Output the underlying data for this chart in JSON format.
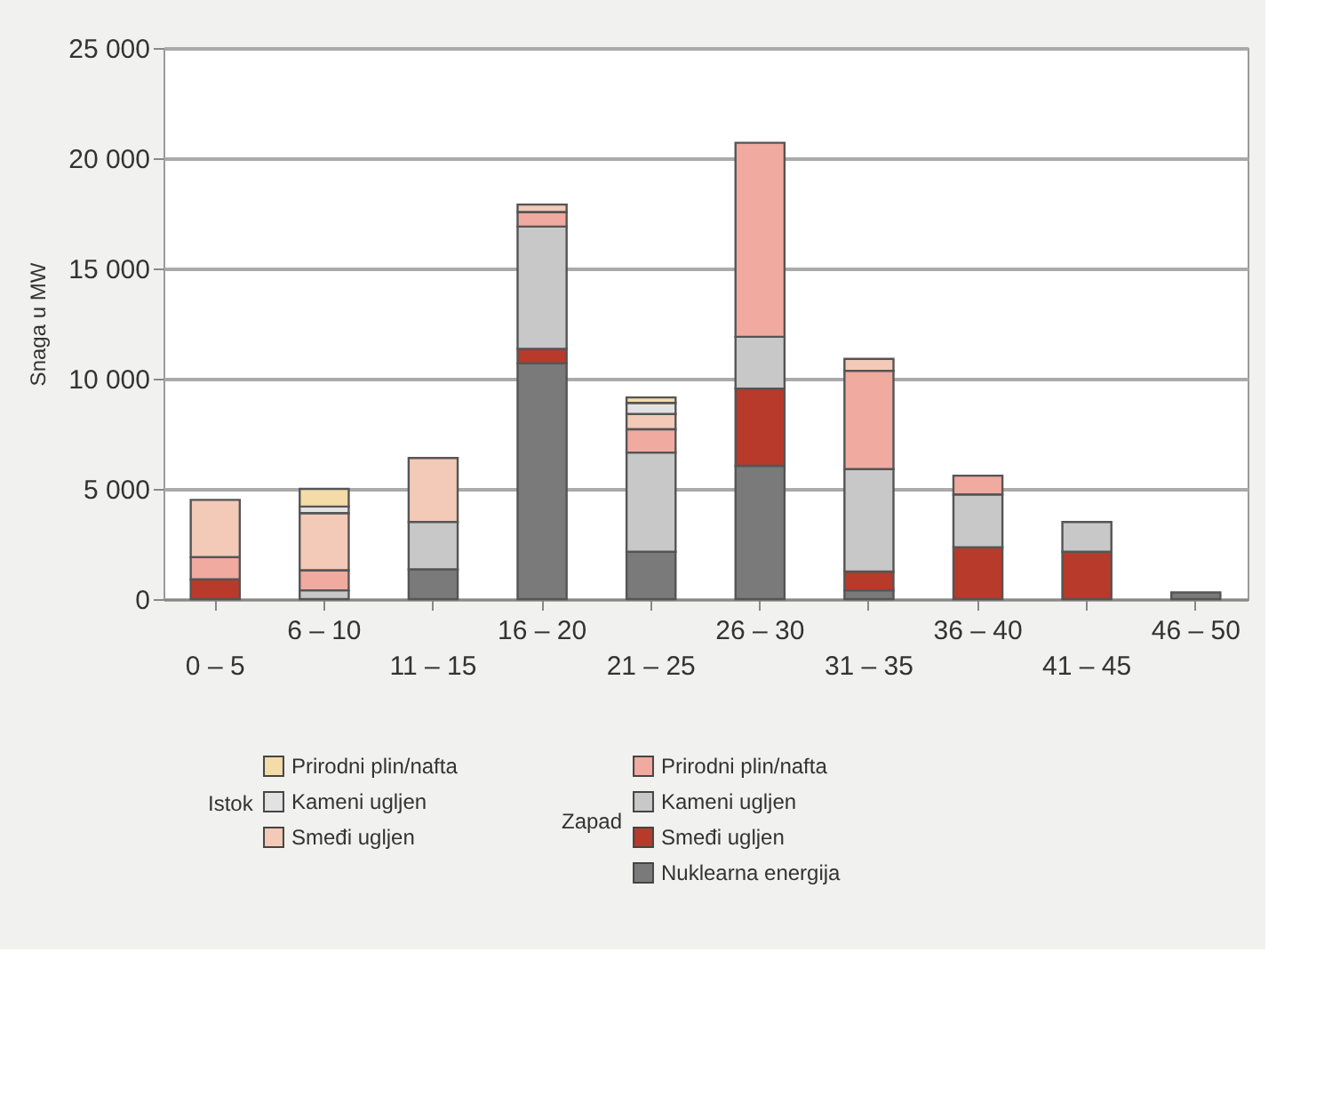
{
  "chart_data": {
    "type": "bar",
    "stacked": true,
    "ylabel": "Snaga u MW",
    "categories": [
      "0 – 5",
      "6 – 10",
      "11 – 15",
      "16 – 20",
      "21 – 25",
      "26 – 30",
      "31 – 35",
      "36 – 40",
      "41 – 45",
      "46 – 50"
    ],
    "ylim": [
      0,
      25000
    ],
    "yticks": [
      {
        "value": 0,
        "label": "0"
      },
      {
        "value": 5000,
        "label": "5 000"
      },
      {
        "value": 10000,
        "label": "10 000"
      },
      {
        "value": 15000,
        "label": "15 000"
      },
      {
        "value": 20000,
        "label": "20 000"
      },
      {
        "value": 25000,
        "label": "25 000"
      }
    ],
    "grid": "y",
    "legend": "bottom",
    "legend_title": [
      "Zapad",
      "Istok"
    ],
    "series": [
      {
        "name": "Nuklearna energija",
        "color": "#7a7a7a",
        "values": [
          null,
          null,
          1350,
          10700,
          2150,
          6050,
          400,
          null,
          null,
          300
        ]
      },
      {
        "name": "Smeđi ugljen",
        "color": "#b83a2a",
        "values": [
          900,
          null,
          null,
          650,
          null,
          3500,
          850,
          2350,
          2150,
          null
        ]
      },
      {
        "name": "Kameni ugljen",
        "color": "#c8c8c8",
        "values": [
          null,
          400,
          2150,
          5550,
          4500,
          2350,
          4650,
          2400,
          1350,
          null
        ]
      },
      {
        "name": "Prirodni plin/nafta",
        "color": "#f0aaa0",
        "values": [
          1000,
          900,
          null,
          650,
          1050,
          8800,
          4450,
          850,
          null,
          null
        ]
      },
      {
        "name": "Smeđi ugljen",
        "color": "#f3c9b8",
        "values": [
          2600,
          2600,
          2900,
          350,
          700,
          null,
          550,
          null,
          null,
          null
        ]
      },
      {
        "name": "Kameni ugljen",
        "color": "#e2e2e2",
        "values": [
          null,
          300,
          null,
          null,
          500,
          null,
          null,
          null,
          null,
          null
        ]
      },
      {
        "name": "Prirodni plin/nafta",
        "color": "#f4dca8",
        "values": [
          null,
          800,
          null,
          null,
          250,
          null,
          null,
          null,
          null,
          null
        ]
      }
    ]
  }
}
